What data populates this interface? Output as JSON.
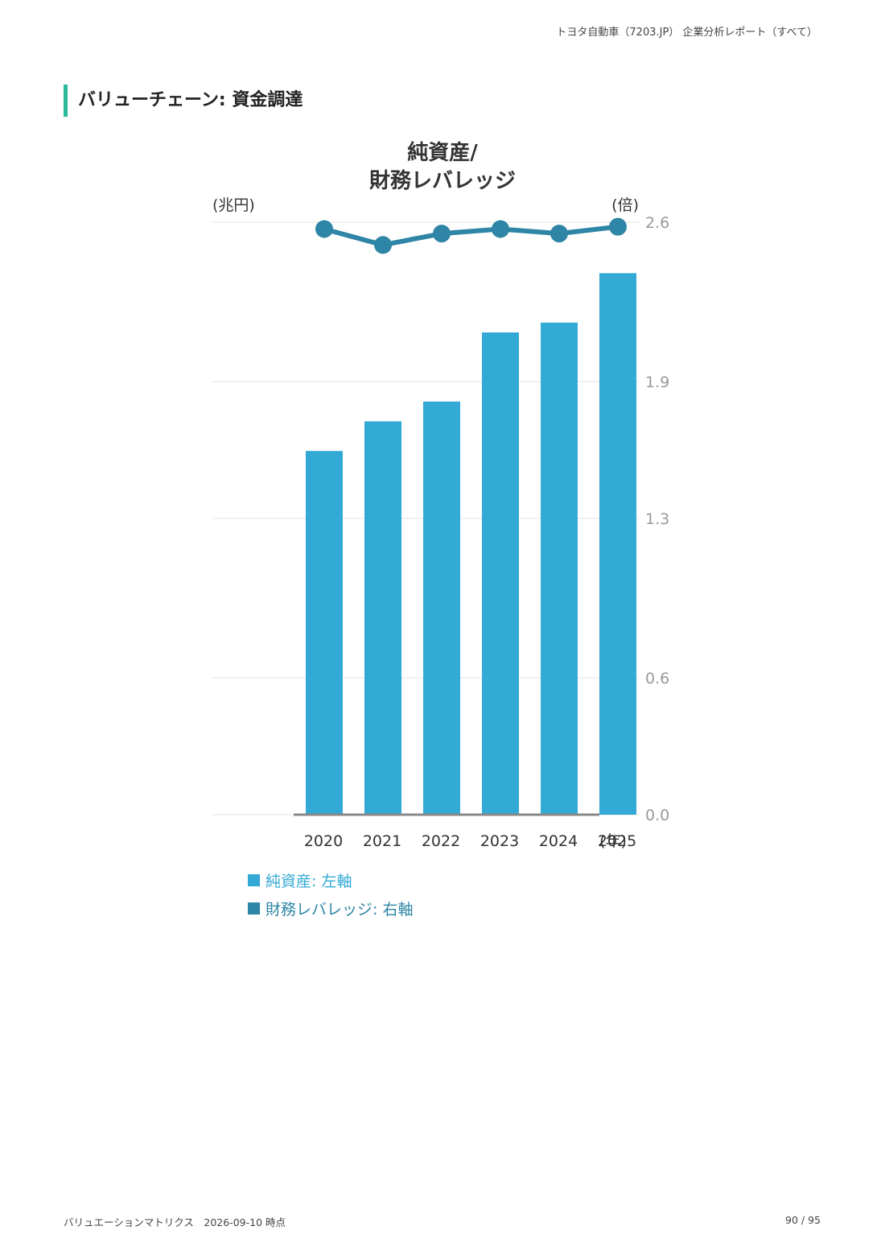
{
  "header": {
    "report_title": "トヨタ自動車（7203.JP） 企業分析レポート（すべて）"
  },
  "section": {
    "title": "バリューチェーン: 資金調達"
  },
  "chart_data": {
    "type": "bar",
    "title_line1": "純資産/",
    "title_line2": "財務レバレッジ",
    "left_unit": "(兆円)",
    "right_unit": "(倍)",
    "x_unit": "(年)",
    "categories": [
      "2020",
      "2021",
      "2022",
      "2023",
      "2024",
      "2025"
    ],
    "series": [
      {
        "name": "純資産",
        "axis": "left",
        "type": "bar",
        "color": "#33a9d5",
        "values": [
          22.1,
          23.9,
          25.1,
          29.3,
          29.9,
          32.9
        ]
      },
      {
        "name": "財務レバレッジ",
        "axis": "right",
        "type": "line",
        "color": "#2e85a6",
        "values": [
          2.57,
          2.5,
          2.55,
          2.57,
          2.55,
          2.58
        ]
      }
    ],
    "left_axis": {
      "range": [
        0,
        36
      ],
      "show_ticks": false
    },
    "right_axis": {
      "range": [
        0.0,
        2.6
      ],
      "ticks": [
        "0.0",
        "0.6",
        "1.3",
        "1.9",
        "2.6"
      ]
    },
    "legend": [
      {
        "label": "純資産: 左軸",
        "color": "#33a9d5"
      },
      {
        "label": "財務レバレッジ: 右軸",
        "color": "#2e85a6"
      }
    ],
    "legend_position": "bottom-left",
    "grid": true
  },
  "footer": {
    "left": "バリュエーションマトリクス　2026-09-10 時点",
    "page": "90 / 95"
  }
}
